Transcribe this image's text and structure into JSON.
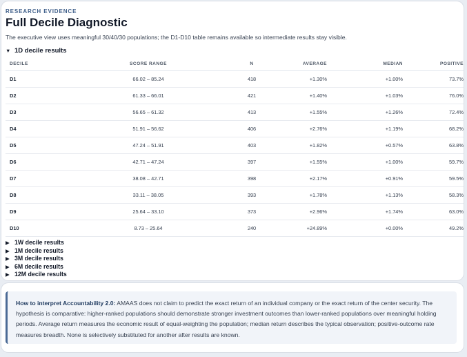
{
  "header": {
    "eyebrow": "RESEARCH EVIDENCE",
    "title": "Full Decile Diagnostic",
    "subtitle": "The executive view uses meaningful 30/40/30 populations; the D1-D10 table remains available so intermediate results stay visible."
  },
  "open_section": {
    "label": "1D decile results",
    "columns": [
      "DECILE",
      "SCORE RANGE",
      "N",
      "AVERAGE",
      "MEDIAN",
      "POSITIVE"
    ],
    "rows": [
      [
        "D1",
        "66.02 – 85.24",
        "418",
        "+1.30%",
        "+1.00%",
        "73.7%"
      ],
      [
        "D2",
        "61.33 – 66.01",
        "421",
        "+1.40%",
        "+1.03%",
        "76.0%"
      ],
      [
        "D3",
        "56.65 – 61.32",
        "413",
        "+1.55%",
        "+1.26%",
        "72.4%"
      ],
      [
        "D4",
        "51.91 – 56.62",
        "406",
        "+2.76%",
        "+1.19%",
        "68.2%"
      ],
      [
        "D5",
        "47.24 – 51.91",
        "403",
        "+1.82%",
        "+0.57%",
        "63.8%"
      ],
      [
        "D6",
        "42.71 – 47.24",
        "397",
        "+1.55%",
        "+1.00%",
        "59.7%"
      ],
      [
        "D7",
        "38.08 – 42.71",
        "398",
        "+2.17%",
        "+0.91%",
        "59.5%"
      ],
      [
        "D8",
        "33.11 – 38.05",
        "393",
        "+1.78%",
        "+1.13%",
        "58.3%"
      ],
      [
        "D9",
        "25.64 – 33.10",
        "373",
        "+2.96%",
        "+1.74%",
        "63.0%"
      ],
      [
        "D10",
        "8.73 – 25.64",
        "240",
        "+24.89%",
        "+0.00%",
        "49.2%"
      ]
    ]
  },
  "collapsed_sections": [
    "1W decile results",
    "1M decile results",
    "3M decile results",
    "6M decile results",
    "12M decile results"
  ],
  "icons": {
    "expanded": "▼",
    "collapsed": "▶"
  },
  "note": {
    "heading": "How to interpret Accountability 2.0:",
    "body": " AMAAS does not claim to predict the exact return of an individual company or the exact return of the center security. The hypothesis is comparative: higher-ranked populations should demonstrate stronger investment outcomes than lower-ranked populations over meaningful holding periods. Average return measures the economic result of equal-weighting the population; median return describes the typical observation; positive-outcome rate measures breadth. None is selectively substituted for another after results are known."
  },
  "colors": {
    "accent": "#4b6a95",
    "eyebrow": "#3f5f8a",
    "note_bg": "#f1f4f9"
  }
}
